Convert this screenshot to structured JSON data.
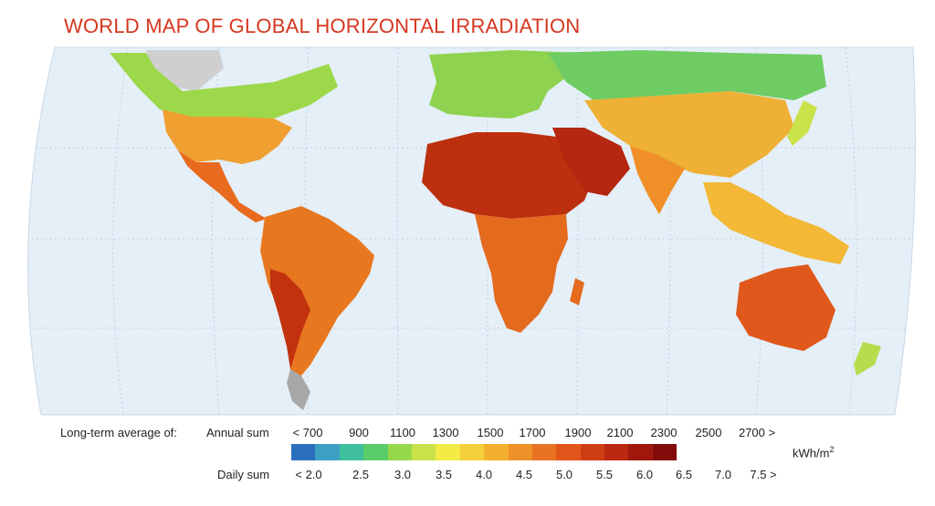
{
  "title": "WORLD MAP OF GLOBAL HORIZONTAL IRRADIATION",
  "legend": {
    "heading": "Long-term average of:",
    "annual_label": "Annual sum",
    "daily_label": "Daily sum",
    "unit_main": "kWh/m",
    "unit_sup": "2",
    "annual_ticks": [
      "< 700",
      "900",
      "1100",
      "1300",
      "1500",
      "1700",
      "1900",
      "2100",
      "2300",
      "2500",
      "2700 >"
    ],
    "daily_ticks": [
      "< 2.0",
      "2.5",
      "3.0",
      "3.5",
      "4.0",
      "4.5",
      "5.0",
      "5.5",
      "6.0",
      "6.5",
      "7.0",
      "7.5 >"
    ],
    "colors": [
      "#2c6fbf",
      "#3d9fc4",
      "#3fbf9c",
      "#5acd6a",
      "#95d94a",
      "#c9e24a",
      "#f2ea45",
      "#f5cf3a",
      "#f3b02f",
      "#ef9128",
      "#e97322",
      "#e0561b",
      "#cf3d14",
      "#b9280f",
      "#a0180c",
      "#830c0a"
    ]
  },
  "map": {
    "background": "#e4eff8",
    "region_colors": {
      "north_america_north": "#9cd84a",
      "north_america_south": "#efa030",
      "central_america": "#e86a1f",
      "south_america": "#e8781f",
      "south_america_andes": "#c2320f",
      "europe": "#8fd24f",
      "africa_sahara": "#bd300f",
      "africa_south": "#e46a1e",
      "middle_east": "#b52710",
      "asia_north": "#6fcc63",
      "asia_central": "#eeb035",
      "india": "#f08f28",
      "southeast_asia": "#f2b836",
      "australia": "#e0581b",
      "greenland": "#cfcfcf",
      "new_zealand": "#b7dd4c"
    }
  }
}
